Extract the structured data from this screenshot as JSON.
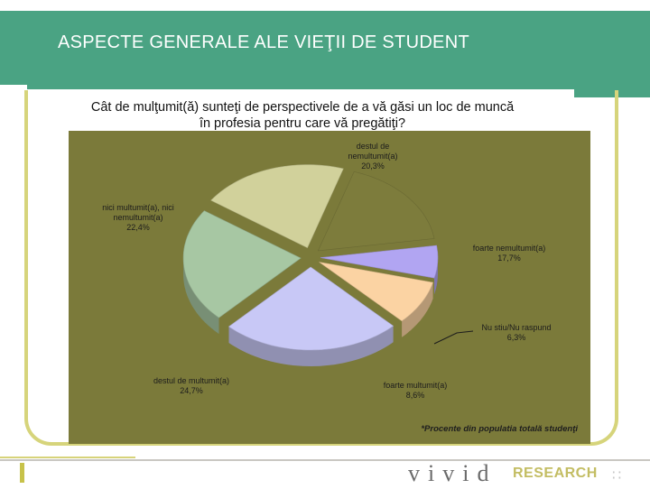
{
  "slide": {
    "title": "ASPECTE GENERALE ALE VIEŢII DE STUDENT",
    "question_line1": "Cât de mulţumit(ă) sunteţi de perspectivele de a vă găsi un loc de muncă",
    "question_line2": "în profesia pentru care vă pregătiţi?",
    "footnote": "*Procente din populatia totală studenţi"
  },
  "logo": {
    "vivid": "vivid",
    "research": "RESEARCH",
    "dots": "∷"
  },
  "colors": {
    "header": "#4aa383",
    "chart_background": "#7b7a3a",
    "frame": "#d6d47b"
  },
  "chart_data": {
    "type": "pie",
    "exploded": true,
    "three_d": true,
    "slices": [
      {
        "label_line1": "destul de",
        "label_line2": "nemultumit(a)",
        "value_text": "20,3%",
        "value": 20.3,
        "color": "#d1d19b"
      },
      {
        "label_line1": "foarte nemultumit(a)",
        "label_line2": "",
        "value_text": "17,7%",
        "value": 17.7,
        "color": "#7d7c3c"
      },
      {
        "label_line1": "Nu stiu/Nu raspund",
        "label_line2": "",
        "value_text": "6,3%",
        "value": 6.3,
        "color": "#b1a5f2"
      },
      {
        "label_line1": "foarte multumit(a)",
        "label_line2": "",
        "value_text": "8,6%",
        "value": 8.6,
        "color": "#fbd3a3"
      },
      {
        "label_line1": "destul de multumit(a)",
        "label_line2": "",
        "value_text": "24,7%",
        "value": 24.7,
        "color": "#c8c8f6"
      },
      {
        "label_line1": "nici multumit(a), nici",
        "label_line2": "nemultumit(a)",
        "value_text": "22,4%",
        "value": 22.4,
        "color": "#a7c7a3"
      }
    ]
  }
}
